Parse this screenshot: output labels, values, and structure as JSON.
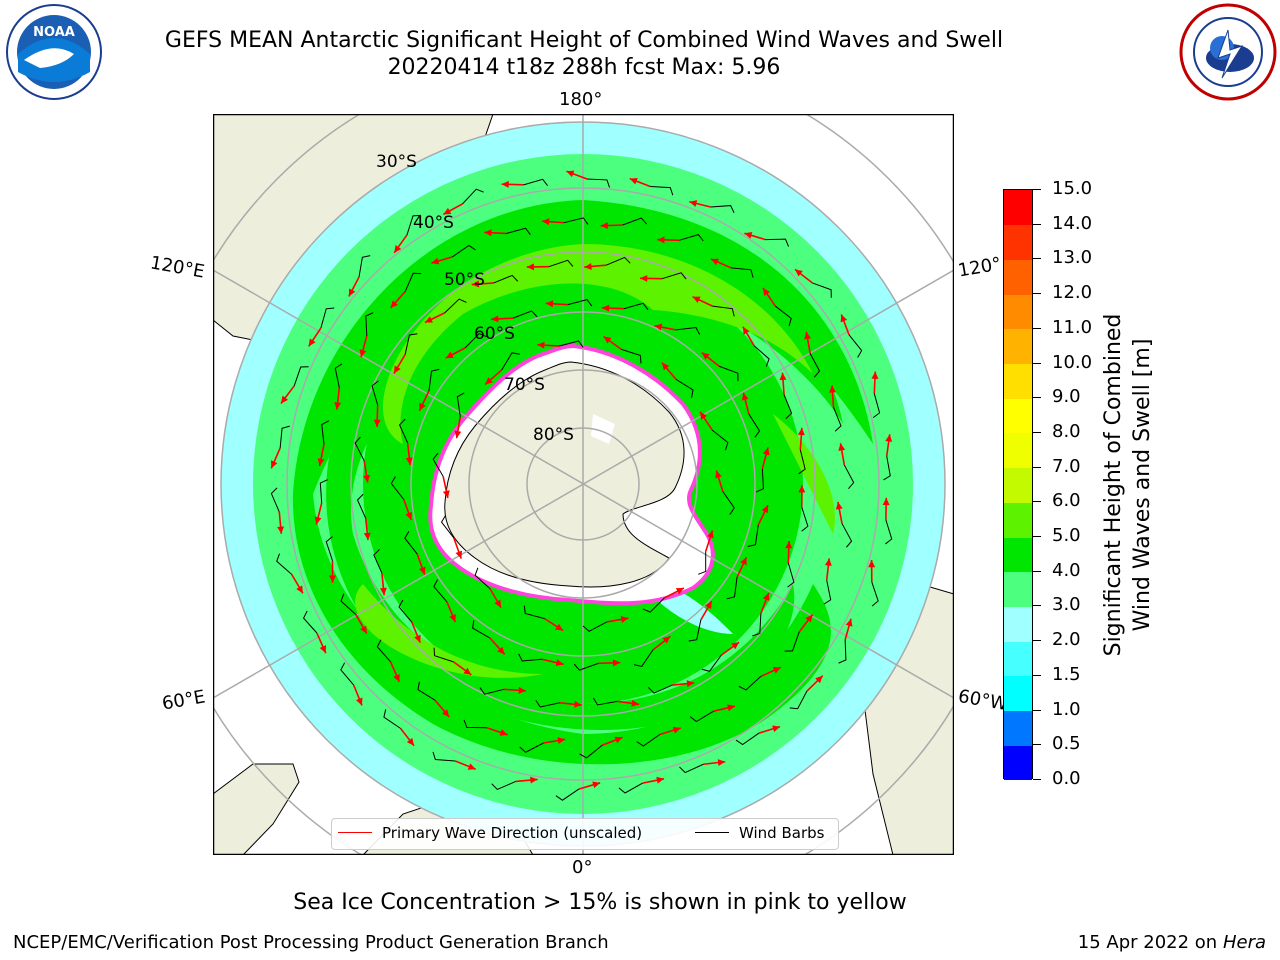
{
  "title_line1": "GEFS MEAN Antarctic Significant Height of Combined Wind Waves and Swell",
  "title_line2": "20220414 t18z 288h fcst   Max: 5.96",
  "longitude_labels": {
    "top": "180°",
    "bottom": "0°",
    "left_upper": "120°E",
    "left_lower": "60°E",
    "right_upper": "120°",
    "right_lower": "60°W"
  },
  "latitude_labels": [
    "30°S",
    "40°S",
    "50°S",
    "60°S",
    "70°S",
    "80°S"
  ],
  "colorbar": {
    "label_line1": "Significant Height of Combined",
    "label_line2": "Wind Waves and Swell [m]",
    "ticks": [
      "0.0",
      "0.5",
      "1.0",
      "1.5",
      "2.0",
      "3.0",
      "4.0",
      "5.0",
      "6.0",
      "7.0",
      "8.0",
      "9.0",
      "10.0",
      "11.0",
      "12.0",
      "13.0",
      "14.0",
      "15.0"
    ],
    "colors": [
      "#0000ff",
      "#0077ff",
      "#00ffff",
      "#46ffff",
      "#a0ffff",
      "#4dff7f",
      "#00e600",
      "#5cf200",
      "#c4fa00",
      "#f0ff00",
      "#ffff00",
      "#ffdf00",
      "#ffb300",
      "#ff8c00",
      "#ff6000",
      "#ff3300",
      "#ff0000"
    ]
  },
  "legend": {
    "wave_direction": "Primary Wave Direction (unscaled)",
    "wind_barbs": "Wind Barbs"
  },
  "sea_ice_note": "Sea Ice Concentration > 15% is shown in pink to yellow",
  "footer_left": "NCEP/EMC/Verification Post Processing Product Generation Branch",
  "footer_right_prefix": "15 Apr 2022 on ",
  "footer_right_host": "Hera",
  "colors": {
    "land": "#eeeedc",
    "ocean_low": "#a0ffff",
    "wave_3_4": "#4dff7f",
    "wave_4_5": "#00e600",
    "wave_5_6": "#5cf200",
    "arrow": "#ff0000",
    "ice_edge": "#ff44dd"
  }
}
